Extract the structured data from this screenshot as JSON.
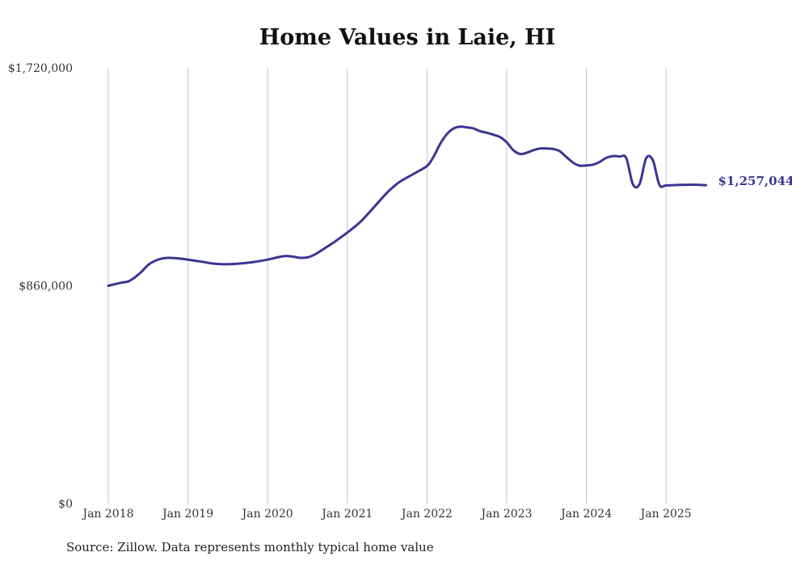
{
  "chart_data": {
    "type": "line",
    "title": "Home Values in Laie, HI",
    "source_note": "Source: Zillow. Data represents monthly typical home value",
    "ylim": [
      0,
      1720000
    ],
    "y_ticks": [
      {
        "value": 0,
        "label": "$0"
      },
      {
        "value": 860000,
        "label": "$860,000"
      },
      {
        "value": 1720000,
        "label": "$1,720,000"
      }
    ],
    "x_ticks": [
      {
        "value": "2018-01",
        "label": "Jan 2018"
      },
      {
        "value": "2019-01",
        "label": "Jan 2019"
      },
      {
        "value": "2020-01",
        "label": "Jan 2020"
      },
      {
        "value": "2021-01",
        "label": "Jan 2021"
      },
      {
        "value": "2022-01",
        "label": "Jan 2022"
      },
      {
        "value": "2023-01",
        "label": "Jan 2023"
      },
      {
        "value": "2024-01",
        "label": "Jan 2024"
      },
      {
        "value": "2025-01",
        "label": "Jan 2025"
      }
    ],
    "grid": {
      "vertical": true,
      "horizontal": false
    },
    "line_color": "#3b3593",
    "end_label": "$1,257,044",
    "series": [
      {
        "x": [
          "2018-01",
          "2018-03",
          "2018-04",
          "2018-05",
          "2018-06",
          "2018-07",
          "2018-08",
          "2018-09",
          "2018-10",
          "2018-11",
          "2019-01",
          "2019-03",
          "2019-05",
          "2019-07",
          "2019-09",
          "2019-11",
          "2020-01",
          "2020-03",
          "2020-04",
          "2020-05",
          "2020-06",
          "2020-07",
          "2020-08",
          "2020-09",
          "2020-11",
          "2021-01",
          "2021-03",
          "2021-05",
          "2021-07",
          "2021-08",
          "2021-09",
          "2021-11",
          "2022-01",
          "2022-02",
          "2022-03",
          "2022-04",
          "2022-05",
          "2022-06",
          "2022-07",
          "2022-08",
          "2022-09",
          "2022-10",
          "2022-11",
          "2022-12",
          "2023-01",
          "2023-02",
          "2023-03",
          "2023-04",
          "2023-05",
          "2023-06",
          "2023-07",
          "2023-08",
          "2023-09",
          "2023-10",
          "2023-11",
          "2023-12",
          "2024-01",
          "2024-02",
          "2024-03",
          "2024-04",
          "2024-05",
          "2024-06",
          "2024-07",
          "2024-08",
          "2024-09",
          "2024-10",
          "2024-11",
          "2024-12",
          "2025-01",
          "2025-03",
          "2025-05",
          "2025-07"
        ],
        "values": [
          860000,
          872000,
          877000,
          893000,
          915000,
          942000,
          958000,
          967000,
          970000,
          969000,
          963000,
          955000,
          947000,
          945000,
          948000,
          954000,
          963000,
          975000,
          977000,
          974000,
          970000,
          972000,
          982000,
          998000,
          1032000,
          1070000,
          1113000,
          1170000,
          1228000,
          1252000,
          1272000,
          1302000,
          1333000,
          1370000,
          1421000,
          1459000,
          1481000,
          1488000,
          1485000,
          1481000,
          1470000,
          1464000,
          1456000,
          1447000,
          1426000,
          1395000,
          1380000,
          1385000,
          1395000,
          1402000,
          1402000,
          1400000,
          1391000,
          1368000,
          1346000,
          1334000,
          1335000,
          1338000,
          1349000,
          1365000,
          1372000,
          1370000,
          1364000,
          1261000,
          1261000,
          1363000,
          1356000,
          1258000,
          1256000,
          1258000,
          1259000,
          1257044
        ]
      }
    ]
  }
}
